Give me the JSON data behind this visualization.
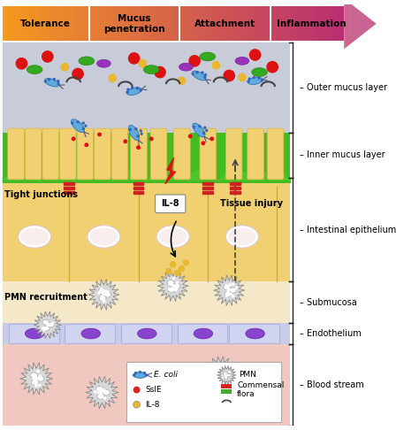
{
  "arrow_labels": [
    "Tolerance",
    "Mucus\npenetration",
    "Attachment",
    "Inflammation"
  ],
  "layer_colors": {
    "outer_mucus": "#c8ccd8",
    "inner_mucus": "#44bb22",
    "epithelium": "#f0d070",
    "submucosa": "#f5e8c8",
    "endothelium": "#c8cce8",
    "blood": "#f0c8c0"
  },
  "tight_junction_label": "Tight junctions",
  "pmn_label": "PMN recruitment",
  "il8_label": "IL-8",
  "tissue_injury_label": "Tissue injury",
  "fig_bg": "#ffffff",
  "ecoli_color": "#60aadd",
  "ssle_color": "#dd2222",
  "il8_dot_color": "#e8b830",
  "commensal_colors": [
    "#dd2222",
    "#8833aa",
    "#44aa33",
    "#555555"
  ],
  "pmn_color": "#cccccc",
  "bracket_color": "#222222",
  "villi_color": "#f0d070",
  "villi_border": "#d4b840"
}
